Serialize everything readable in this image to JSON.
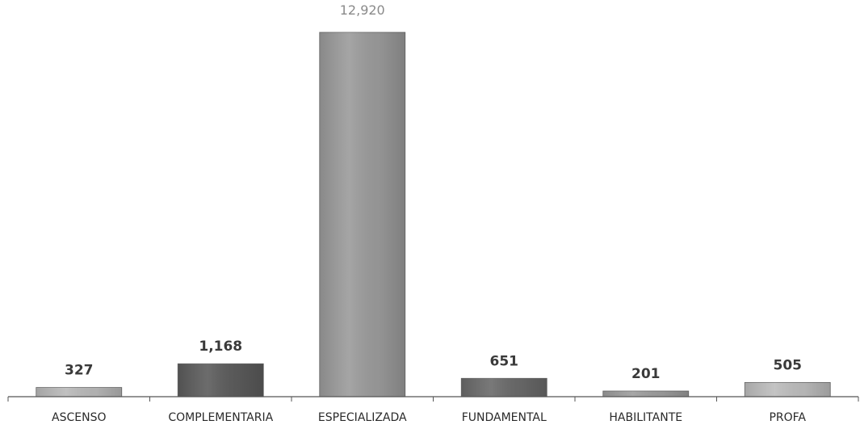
{
  "chart_data": {
    "type": "bar",
    "categories": [
      "ASCENSO",
      "COMPLEMENTARIA",
      "ESPECIALIZADA",
      "FUNDAMENTAL",
      "HABILITANTE",
      "PROFA"
    ],
    "values": [
      327,
      1168,
      12920,
      651,
      201,
      505
    ],
    "value_labels": [
      "327",
      "1,168",
      "12,920",
      "651",
      "201",
      "505"
    ],
    "title": "",
    "xlabel": "",
    "ylabel": "",
    "ylim": [
      0,
      12920
    ],
    "grid": false,
    "legend": "none",
    "colors": [
      "#b9b9b9",
      "#5c5c5c",
      "#9b9b9b",
      "#6a6a6a",
      "#9d9d9d",
      "#bdbdbd"
    ]
  }
}
